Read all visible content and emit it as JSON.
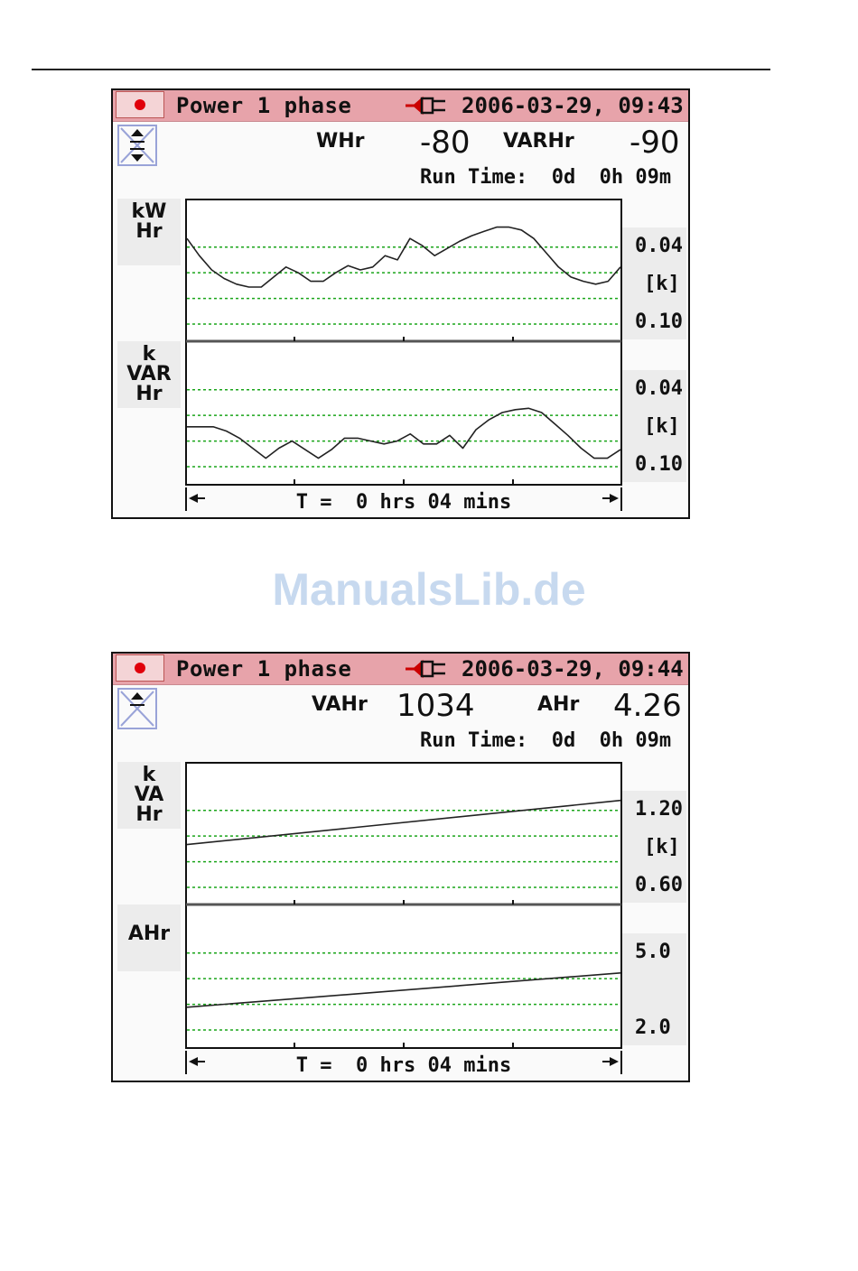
{
  "watermark": "ManualsLib.de",
  "screens": [
    {
      "title": "Power 1 phase",
      "datetime": "2006-03-29, 09:43",
      "label1": "WHr",
      "value1": "-80",
      "label2": "VARHr",
      "value2": "-90",
      "runtime": "Run Time:  0d  0h 09m",
      "traces": [
        {
          "label": [
            "kW",
            "Hr"
          ],
          "top": "0.04",
          "unit": "[k]",
          "bottom": "0.10",
          "points": [
            0.28,
            0.4,
            0.5,
            0.56,
            0.6,
            0.62,
            0.62,
            0.55,
            0.48,
            0.52,
            0.58,
            0.58,
            0.52,
            0.47,
            0.5,
            0.48,
            0.4,
            0.43,
            0.28,
            0.33,
            0.4,
            0.35,
            0.3,
            0.26,
            0.23,
            0.2,
            0.2,
            0.22,
            0.28,
            0.38,
            0.48,
            0.55,
            0.58,
            0.6,
            0.58,
            0.48
          ]
        },
        {
          "label": [
            "k",
            "VAR",
            "Hr"
          ],
          "top": "0.04",
          "unit": "[k]",
          "bottom": "0.10",
          "points": [
            0.6,
            0.6,
            0.6,
            0.63,
            0.68,
            0.75,
            0.82,
            0.75,
            0.7,
            0.76,
            0.82,
            0.76,
            0.68,
            0.68,
            0.7,
            0.72,
            0.7,
            0.65,
            0.72,
            0.72,
            0.66,
            0.75,
            0.62,
            0.55,
            0.5,
            0.48,
            0.47,
            0.5,
            0.58,
            0.66,
            0.75,
            0.82,
            0.82,
            0.76
          ]
        }
      ],
      "time_label": "T =  0 hrs 04 mins"
    },
    {
      "title": "Power 1 phase",
      "datetime": "2006-03-29, 09:44",
      "label1": "VAHr",
      "value1": "1034",
      "label2": "AHr",
      "value2": "4.26",
      "runtime": "Run Time:  0d  0h 09m",
      "traces": [
        {
          "label": [
            "k",
            "VA",
            "Hr"
          ],
          "top": "1.20",
          "unit": "[k]",
          "bottom": "0.60",
          "points": [
            0.58,
            0.27
          ]
        },
        {
          "label": [
            "AHr"
          ],
          "top": "5.0",
          "unit": "",
          "bottom": "2.0",
          "points": [
            0.72,
            0.48
          ]
        }
      ],
      "time_label": "T =  0 hrs 04 mins"
    }
  ]
}
